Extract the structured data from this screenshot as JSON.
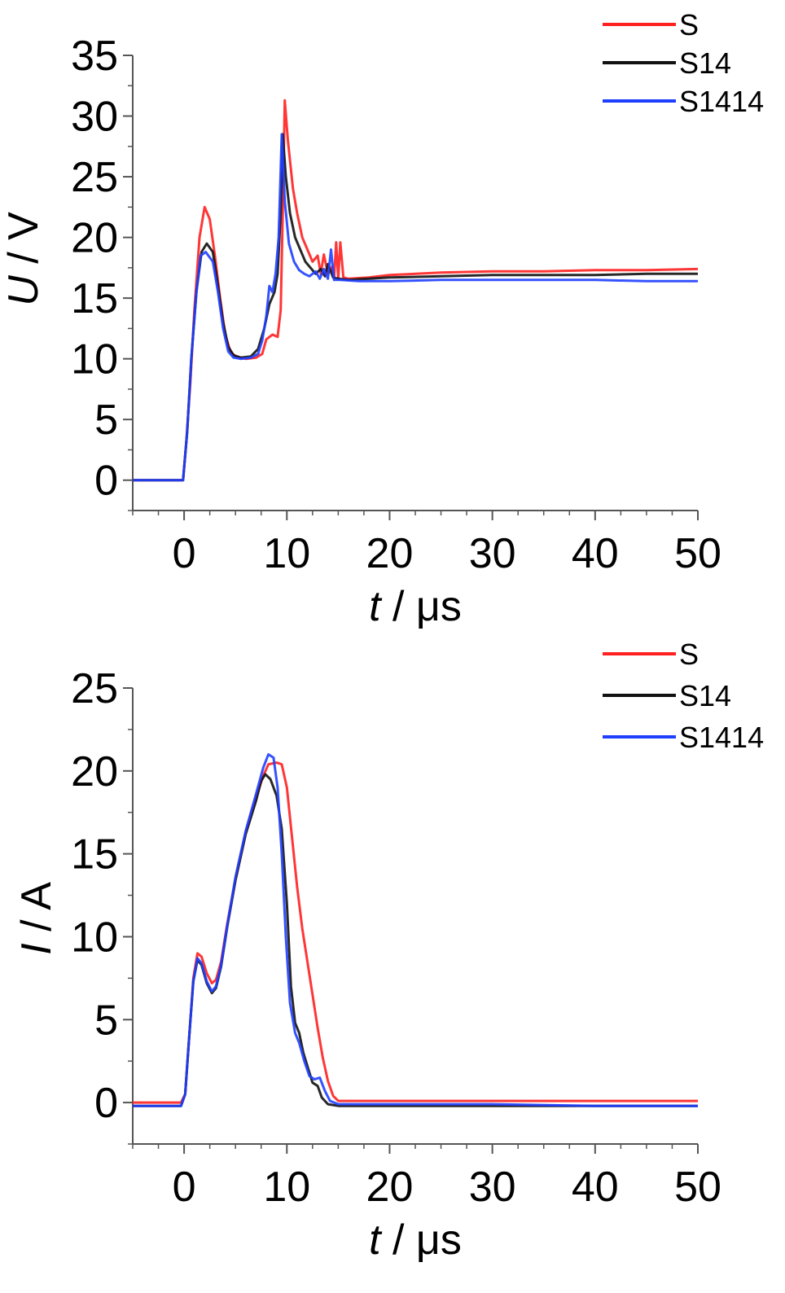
{
  "chart_data": [
    {
      "type": "line",
      "xlabel": {
        "var": "t",
        "unit": " / μs"
      },
      "ylabel": {
        "var": "U",
        "unit": " / V"
      },
      "xlim": [
        -5,
        50
      ],
      "ylim": [
        -2.5,
        35
      ],
      "xticks": [
        0,
        10,
        20,
        30,
        40,
        50
      ],
      "yticks": [
        0,
        5,
        10,
        15,
        20,
        25,
        30,
        35
      ],
      "legend_position": "top-right",
      "series": [
        {
          "name": "S",
          "color": "#ff2020",
          "points": [
            [
              -5,
              0
            ],
            [
              -0.5,
              0
            ],
            [
              -0.1,
              0
            ],
            [
              0.2,
              3
            ],
            [
              0.6,
              8
            ],
            [
              1,
              14
            ],
            [
              1.5,
              20
            ],
            [
              2,
              22.5
            ],
            [
              2.5,
              21.5
            ],
            [
              3,
              18.5
            ],
            [
              3.5,
              15
            ],
            [
              4,
              12
            ],
            [
              4.5,
              10.6
            ],
            [
              5,
              10.2
            ],
            [
              6,
              10
            ],
            [
              7,
              10.1
            ],
            [
              7.6,
              10.4
            ],
            [
              8,
              11.6
            ],
            [
              8.6,
              12
            ],
            [
              9.1,
              11.8
            ],
            [
              9.4,
              14
            ],
            [
              9.6,
              22
            ],
            [
              9.8,
              31.3
            ],
            [
              10.1,
              28
            ],
            [
              10.6,
              24
            ],
            [
              11,
              22
            ],
            [
              11.5,
              20
            ],
            [
              12,
              19
            ],
            [
              12.5,
              18
            ],
            [
              13,
              18.5
            ],
            [
              13.3,
              17
            ],
            [
              13.6,
              18.6
            ],
            [
              14,
              17
            ],
            [
              14.4,
              17.6
            ],
            [
              14.6,
              16.6
            ],
            [
              14.8,
              19.6
            ],
            [
              15,
              16.6
            ],
            [
              15.2,
              19.6
            ],
            [
              15.5,
              16.7
            ],
            [
              16,
              16.6
            ],
            [
              18,
              16.7
            ],
            [
              20,
              16.9
            ],
            [
              25,
              17.1
            ],
            [
              30,
              17.2
            ],
            [
              35,
              17.2
            ],
            [
              40,
              17.3
            ],
            [
              45,
              17.3
            ],
            [
              50,
              17.4
            ]
          ]
        },
        {
          "name": "S14",
          "color": "#111111",
          "points": [
            [
              -5,
              0
            ],
            [
              -0.5,
              0
            ],
            [
              -0.1,
              0
            ],
            [
              0.3,
              4
            ],
            [
              0.7,
              10
            ],
            [
              1.2,
              15.5
            ],
            [
              1.7,
              18.8
            ],
            [
              2.2,
              19.5
            ],
            [
              2.8,
              18.8
            ],
            [
              3.3,
              16
            ],
            [
              3.8,
              13
            ],
            [
              4.3,
              11
            ],
            [
              4.8,
              10.3
            ],
            [
              5.5,
              10.1
            ],
            [
              6.5,
              10.2
            ],
            [
              7.2,
              10.8
            ],
            [
              7.8,
              12.5
            ],
            [
              8.3,
              14.5
            ],
            [
              8.8,
              15.5
            ],
            [
              9.1,
              17
            ],
            [
              9.4,
              22
            ],
            [
              9.6,
              28.5
            ],
            [
              9.9,
              25
            ],
            [
              10.3,
              22
            ],
            [
              10.8,
              20
            ],
            [
              11.3,
              19
            ],
            [
              11.8,
              18
            ],
            [
              12.3,
              17.5
            ],
            [
              12.8,
              17
            ],
            [
              13.3,
              17.4
            ],
            [
              13.7,
              16.8
            ],
            [
              14,
              17.8
            ],
            [
              14.5,
              16.7
            ],
            [
              15,
              16.6
            ],
            [
              16,
              16.5
            ],
            [
              18,
              16.6
            ],
            [
              20,
              16.7
            ],
            [
              25,
              16.8
            ],
            [
              30,
              16.9
            ],
            [
              35,
              16.9
            ],
            [
              40,
              16.9
            ],
            [
              45,
              17
            ],
            [
              50,
              17
            ]
          ]
        },
        {
          "name": "S1414",
          "color": "#1f3fff",
          "points": [
            [
              -5,
              0
            ],
            [
              -0.5,
              0
            ],
            [
              -0.1,
              0
            ],
            [
              0.3,
              4
            ],
            [
              0.7,
              10
            ],
            [
              1.2,
              15.5
            ],
            [
              1.6,
              18.5
            ],
            [
              2.1,
              18.8
            ],
            [
              2.8,
              18
            ],
            [
              3.3,
              15.5
            ],
            [
              3.8,
              12.5
            ],
            [
              4.3,
              10.6
            ],
            [
              4.8,
              10.1
            ],
            [
              5.5,
              10
            ],
            [
              6.5,
              10.1
            ],
            [
              7.2,
              10.4
            ],
            [
              7.6,
              11.5
            ],
            [
              8,
              13.5
            ],
            [
              8.3,
              16
            ],
            [
              8.6,
              15.5
            ],
            [
              8.9,
              17
            ],
            [
              9.2,
              20
            ],
            [
              9.5,
              28.5
            ],
            [
              9.8,
              23
            ],
            [
              10.2,
              19.5
            ],
            [
              10.7,
              18
            ],
            [
              11.2,
              17.3
            ],
            [
              11.7,
              17
            ],
            [
              12.2,
              16.8
            ],
            [
              12.8,
              17.2
            ],
            [
              13.2,
              16.6
            ],
            [
              13.6,
              17.4
            ],
            [
              14,
              16.6
            ],
            [
              14.3,
              19
            ],
            [
              14.6,
              16.5
            ],
            [
              15.2,
              16.5
            ],
            [
              17,
              16.4
            ],
            [
              20,
              16.4
            ],
            [
              25,
              16.5
            ],
            [
              30,
              16.5
            ],
            [
              35,
              16.5
            ],
            [
              40,
              16.5
            ],
            [
              45,
              16.4
            ],
            [
              50,
              16.4
            ]
          ]
        }
      ]
    },
    {
      "type": "line",
      "xlabel": {
        "var": "t",
        "unit": " / μs"
      },
      "ylabel": {
        "var": "I",
        "unit": " / A"
      },
      "xlim": [
        -5,
        50
      ],
      "ylim": [
        -2.5,
        25
      ],
      "xticks": [
        0,
        10,
        20,
        30,
        40,
        50
      ],
      "yticks": [
        0,
        5,
        10,
        15,
        20,
        25
      ],
      "legend_position": "top-right",
      "series": [
        {
          "name": "S",
          "color": "#ff2020",
          "points": [
            [
              -5,
              0
            ],
            [
              -0.3,
              0
            ],
            [
              0.1,
              0.5
            ],
            [
              0.5,
              4
            ],
            [
              0.9,
              7.5
            ],
            [
              1.3,
              9
            ],
            [
              1.7,
              8.8
            ],
            [
              2.2,
              7.8
            ],
            [
              2.7,
              7.2
            ],
            [
              3.1,
              7.4
            ],
            [
              3.6,
              8.5
            ],
            [
              4.2,
              10.8
            ],
            [
              5,
              13.5
            ],
            [
              6,
              16.3
            ],
            [
              7,
              18.4
            ],
            [
              7.7,
              19.7
            ],
            [
              8.2,
              20.4
            ],
            [
              9,
              20.5
            ],
            [
              9.5,
              20.4
            ],
            [
              10,
              19
            ],
            [
              10.5,
              16
            ],
            [
              11,
              13
            ],
            [
              11.5,
              10.5
            ],
            [
              12,
              8.5
            ],
            [
              12.5,
              6.5
            ],
            [
              13,
              4.5
            ],
            [
              13.5,
              2.7
            ],
            [
              14,
              1.3
            ],
            [
              14.5,
              0.4
            ],
            [
              15,
              0.1
            ],
            [
              16,
              0.1
            ],
            [
              20,
              0.1
            ],
            [
              30,
              0.1
            ],
            [
              40,
              0.1
            ],
            [
              50,
              0.1
            ]
          ]
        },
        {
          "name": "S14",
          "color": "#111111",
          "points": [
            [
              -5,
              -0.2
            ],
            [
              -0.3,
              -0.2
            ],
            [
              0.1,
              0.5
            ],
            [
              0.5,
              4
            ],
            [
              0.9,
              7.3
            ],
            [
              1.3,
              8.6
            ],
            [
              1.7,
              8.3
            ],
            [
              2.2,
              7.2
            ],
            [
              2.7,
              6.6
            ],
            [
              3.1,
              6.9
            ],
            [
              3.6,
              8.2
            ],
            [
              4.2,
              10.6
            ],
            [
              5,
              13.4
            ],
            [
              6,
              16.2
            ],
            [
              7,
              18.2
            ],
            [
              7.5,
              19.4
            ],
            [
              7.9,
              19.8
            ],
            [
              8.4,
              19.5
            ],
            [
              9,
              18.5
            ],
            [
              9.5,
              16.5
            ],
            [
              10,
              12
            ],
            [
              10.4,
              7
            ],
            [
              10.8,
              4.8
            ],
            [
              11.2,
              4.2
            ],
            [
              11.6,
              3
            ],
            [
              12,
              2.2
            ],
            [
              12.5,
              1.2
            ],
            [
              13,
              1
            ],
            [
              13.4,
              0.3
            ],
            [
              14,
              -0.1
            ],
            [
              15,
              -0.2
            ],
            [
              20,
              -0.2
            ],
            [
              30,
              -0.2
            ],
            [
              40,
              -0.2
            ],
            [
              50,
              -0.2
            ]
          ]
        },
        {
          "name": "S1414",
          "color": "#1f3fff",
          "points": [
            [
              -5,
              -0.2
            ],
            [
              -0.3,
              -0.2
            ],
            [
              0.1,
              0.5
            ],
            [
              0.5,
              4
            ],
            [
              0.9,
              7.3
            ],
            [
              1.3,
              8.7
            ],
            [
              1.7,
              8.4
            ],
            [
              2.2,
              7.3
            ],
            [
              2.7,
              6.7
            ],
            [
              3.1,
              7
            ],
            [
              3.6,
              8.3
            ],
            [
              4.2,
              10.7
            ],
            [
              5,
              13.6
            ],
            [
              6,
              16.4
            ],
            [
              7,
              18.6
            ],
            [
              7.7,
              20.2
            ],
            [
              8.2,
              21
            ],
            [
              8.7,
              20.8
            ],
            [
              9.1,
              19
            ],
            [
              9.5,
              15
            ],
            [
              9.9,
              10
            ],
            [
              10.3,
              6
            ],
            [
              10.8,
              4.2
            ],
            [
              11.2,
              3.6
            ],
            [
              11.7,
              2.5
            ],
            [
              12.2,
              1.6
            ],
            [
              12.7,
              1.4
            ],
            [
              13.2,
              1.5
            ],
            [
              13.7,
              0.7
            ],
            [
              14.2,
              0.1
            ],
            [
              15,
              -0.1
            ],
            [
              20,
              -0.1
            ],
            [
              30,
              -0.1
            ],
            [
              40,
              -0.2
            ],
            [
              50,
              -0.2
            ]
          ]
        }
      ]
    }
  ]
}
